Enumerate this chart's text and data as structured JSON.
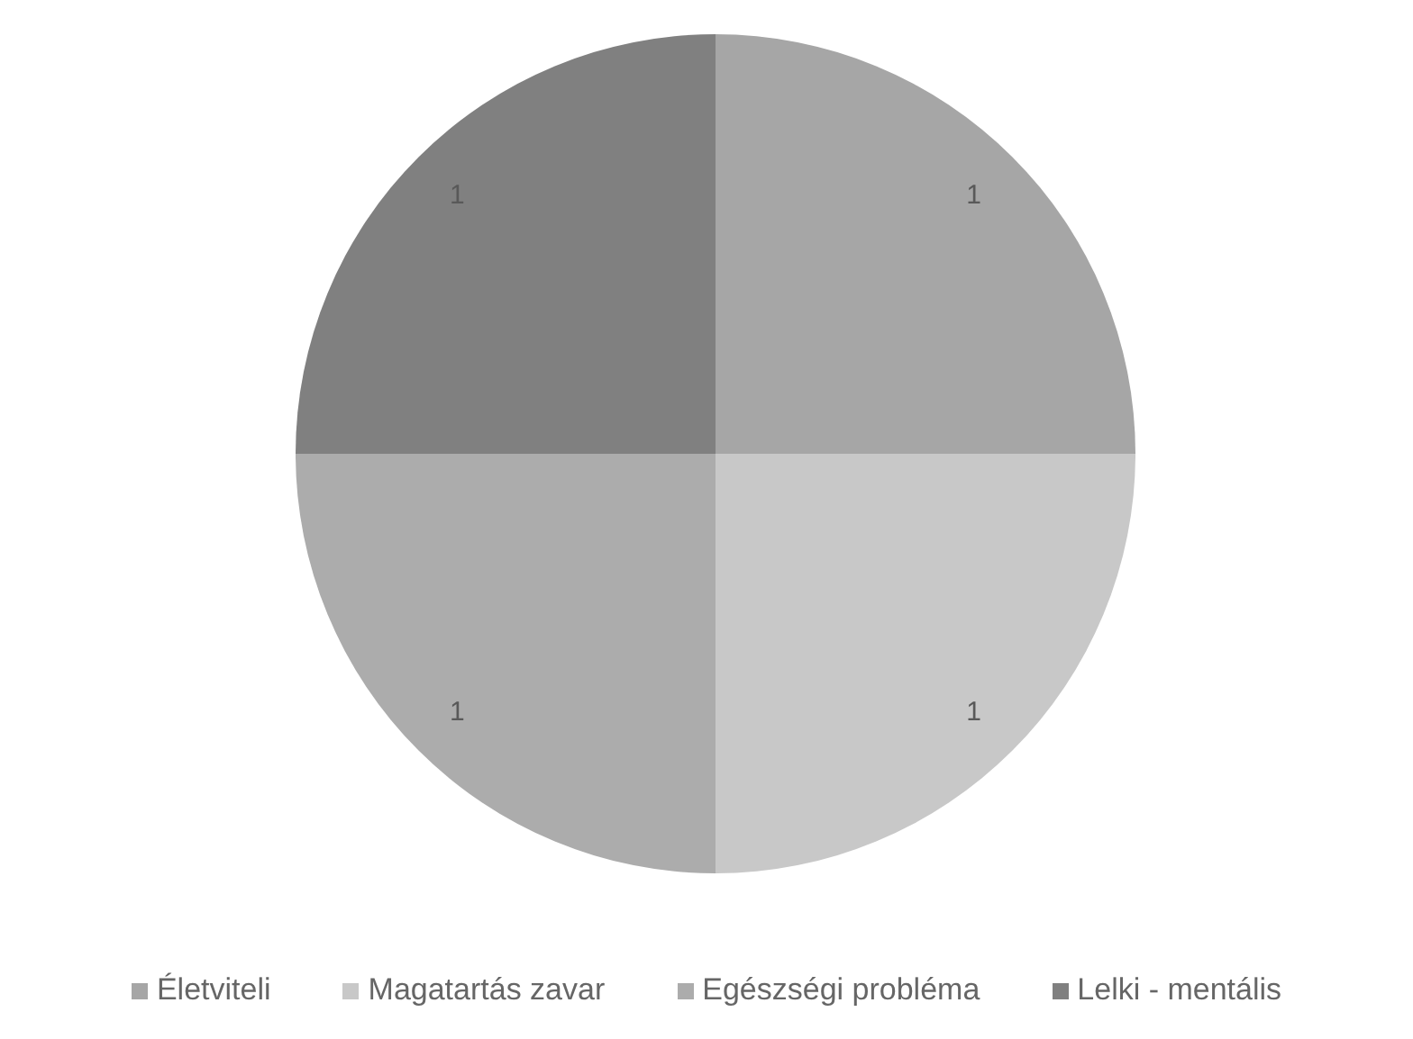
{
  "chart_data": {
    "type": "pie",
    "categories": [
      "Életviteli",
      "Magatartás zavar",
      "Egészségi probléma",
      "Lelki - mentális"
    ],
    "values": [
      1,
      1,
      1,
      1
    ],
    "colors": [
      "#a6a6a6",
      "#c8c8c8",
      "#acacac",
      "#808080"
    ],
    "data_labels": true,
    "legend": "bottom"
  }
}
